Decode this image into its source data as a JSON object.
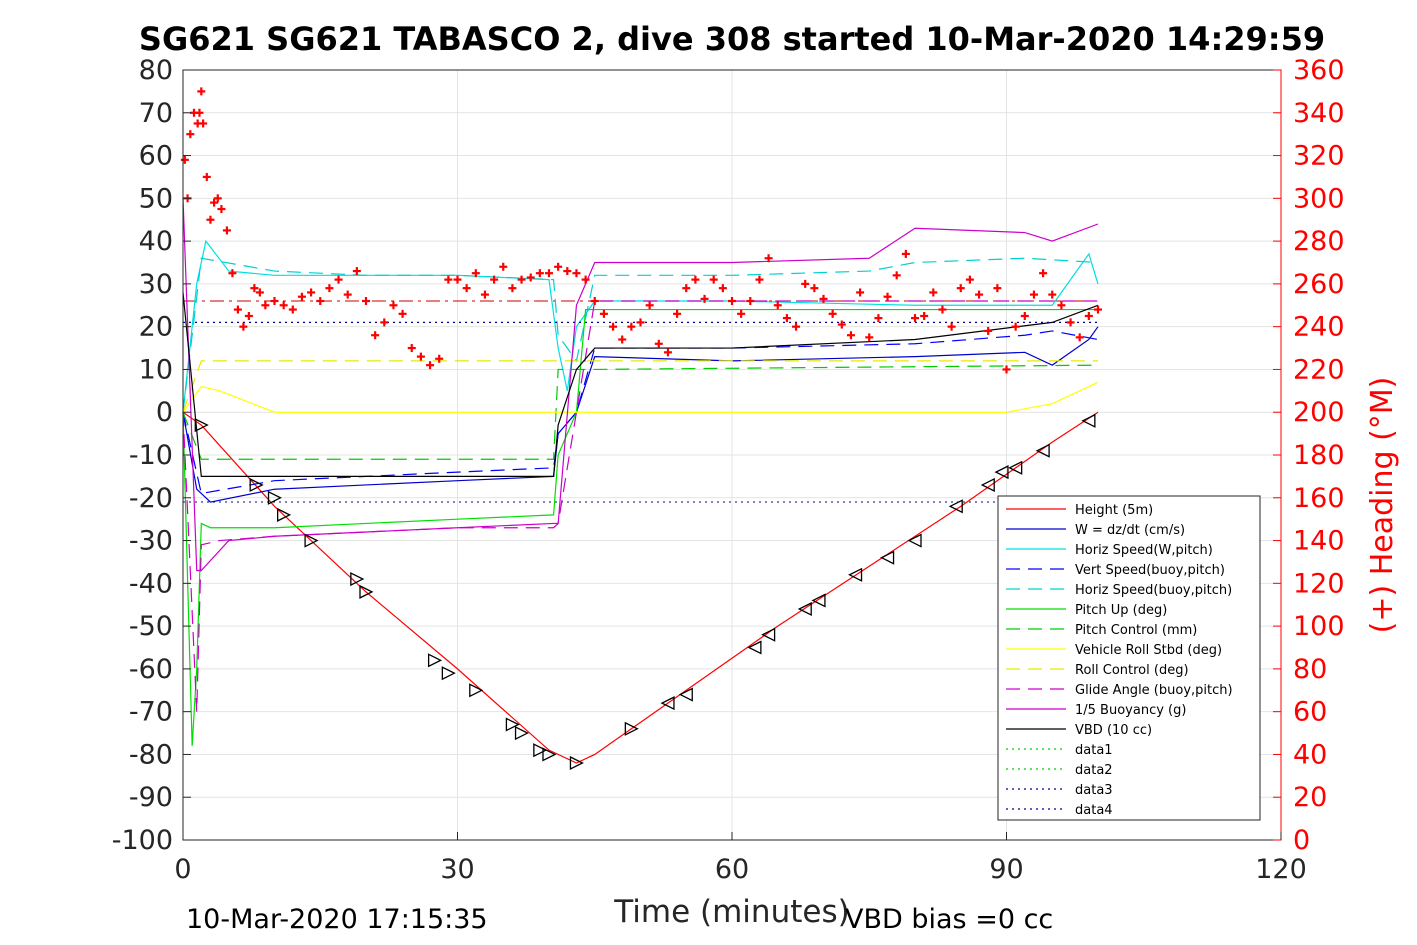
{
  "chart_data": {
    "type": "line",
    "title": "SG621 SG621 TABASCO 2, dive 308 started 10-Mar-2020 14:29:59",
    "xlabel": "Time (minutes)",
    "ylabel_right": "(+) Heading (°M)",
    "xlim": [
      0,
      120
    ],
    "ylim_left": [
      -100,
      80
    ],
    "ylim_right": [
      0,
      360
    ],
    "x_ticks": [
      "0",
      "30",
      "60",
      "90",
      "120"
    ],
    "y_left_ticks": [
      "80",
      "70",
      "60",
      "50",
      "40",
      "30",
      "20",
      "10",
      "0",
      "-10",
      "-20",
      "-30",
      "-40",
      "-50",
      "-60",
      "-70",
      "-80",
      "-90",
      "-100"
    ],
    "y_right_ticks": [
      "360",
      "340",
      "320",
      "300",
      "280",
      "260",
      "240",
      "220",
      "200",
      "180",
      "160",
      "140",
      "120",
      "100",
      "80",
      "60",
      "40",
      "20",
      "0"
    ],
    "grid": true,
    "legend_position": "lower-right",
    "footer_left": "10-Mar-2020 17:15:35",
    "footer_right": "VBD bias =0 cc",
    "series": [
      {
        "name": "Height (5m)",
        "color": "#ff0000",
        "style": "solid",
        "x": [
          0,
          2,
          10,
          20,
          30,
          40,
          43,
          45,
          55,
          65,
          75,
          85,
          95,
          100
        ],
        "y": [
          0,
          -3,
          -22,
          -42,
          -60,
          -79,
          -82,
          -80,
          -65,
          -50,
          -36,
          -22,
          -7,
          0
        ]
      },
      {
        "name": "W = dz/dt (cm/s)",
        "color": "#0000cd",
        "style": "solid",
        "x": [
          0,
          1.5,
          3,
          10,
          20,
          30,
          40.5,
          41,
          43,
          45,
          60,
          80,
          92,
          95,
          99,
          100
        ],
        "y": [
          0,
          -18,
          -21,
          -18,
          -17,
          -16,
          -15,
          -5,
          0,
          13,
          12,
          13,
          14,
          11,
          17,
          20
        ]
      },
      {
        "name": "Horiz Speed(W,pitch)",
        "color": "#00e0e0",
        "style": "solid",
        "x": [
          0,
          1.5,
          2.5,
          5,
          10,
          20,
          30,
          40,
          41,
          42,
          43,
          45,
          60,
          80,
          95,
          99,
          100
        ],
        "y": [
          0,
          30,
          40,
          33,
          32,
          32,
          32,
          31,
          15,
          5,
          20,
          26,
          26,
          25,
          25,
          37,
          30
        ]
      },
      {
        "name": "Vert Speed(buoy,pitch)",
        "color": "#0000ff",
        "style": "dashed",
        "x": [
          0,
          2,
          10,
          20,
          30,
          40.5,
          41,
          43,
          45,
          60,
          80,
          92,
          95,
          100
        ],
        "y": [
          0,
          -19,
          -16,
          -15,
          -14,
          -13,
          -5,
          0,
          15,
          15,
          16,
          18,
          19,
          17
        ]
      },
      {
        "name": "Horiz Speed(buoy,pitch)",
        "color": "#00d0d0",
        "style": "dashed",
        "x": [
          0,
          2,
          10,
          20,
          30,
          40.5,
          41,
          43,
          45,
          60,
          75,
          80,
          92,
          100
        ],
        "y": [
          0,
          36,
          33,
          32,
          32,
          31,
          18,
          12,
          32,
          32,
          33,
          35,
          36,
          35
        ]
      },
      {
        "name": "Pitch Up (deg)",
        "color": "#00e000",
        "style": "solid",
        "x": [
          0,
          1,
          1.5,
          2,
          3,
          10,
          20,
          30,
          40.5,
          41,
          43,
          44,
          60,
          80,
          100
        ],
        "y": [
          0,
          -78,
          -60,
          -26,
          -27,
          -27,
          -26,
          -25,
          -24,
          -10,
          0,
          24,
          24,
          24,
          24
        ]
      },
      {
        "name": "Pitch Control (mm)",
        "color": "#00cc00",
        "style": "dashed",
        "x": [
          0,
          2,
          40.5,
          41,
          45,
          100
        ],
        "y": [
          0,
          -11,
          -11,
          10,
          10,
          11
        ]
      },
      {
        "name": "Vehicle Roll Stbd (deg)",
        "color": "#ffff00",
        "style": "solid",
        "x": [
          0,
          2,
          4,
          10,
          20,
          30,
          40,
          45,
          50,
          60,
          70,
          80,
          90,
          95,
          100
        ],
        "y": [
          0,
          6,
          5,
          0,
          0,
          0,
          0,
          0,
          0,
          0,
          0,
          0,
          0,
          2,
          7
        ]
      },
      {
        "name": "Roll Control (deg)",
        "color": "#e8e800",
        "style": "dashed",
        "x": [
          0,
          2,
          10,
          20,
          30,
          40,
          45,
          60,
          80,
          100
        ],
        "y": [
          0,
          12,
          12,
          12,
          12,
          12,
          12,
          12,
          12,
          12
        ]
      },
      {
        "name": "Glide Angle (buoy,pitch)",
        "color": "#cc00cc",
        "style": "dashed",
        "x": [
          0,
          1.5,
          2,
          4,
          10,
          20,
          30,
          40.5,
          41,
          43,
          45,
          60,
          80,
          100
        ],
        "y": [
          0,
          -70,
          -31,
          -30,
          -29,
          -28,
          -27,
          -27,
          -26,
          0,
          26,
          26,
          26,
          26
        ]
      },
      {
        "name": "1/5 Buoyancy (g)",
        "color": "#cc00cc",
        "style": "solid",
        "x": [
          0,
          1.5,
          2,
          5,
          10,
          20,
          30,
          40.5,
          41,
          43,
          45,
          60,
          75,
          80,
          92,
          95,
          100
        ],
        "y": [
          50,
          -37,
          -37,
          -30,
          -29,
          -28,
          -27,
          -26,
          -26,
          25,
          35,
          35,
          36,
          43,
          42,
          40,
          44
        ]
      },
      {
        "name": "VBD (10 cc)",
        "color": "#000000",
        "style": "solid",
        "x": [
          0,
          2,
          40.5,
          41,
          43,
          45,
          60,
          80,
          95,
          100
        ],
        "y": [
          28,
          -15,
          -15,
          -3,
          10,
          15,
          15,
          17,
          21,
          25
        ]
      },
      {
        "name": "data1",
        "color": "#00cc00",
        "style": "dotted",
        "x": [],
        "y": []
      },
      {
        "name": "data2",
        "color": "#00cc00",
        "style": "dotted",
        "x": [],
        "y": []
      },
      {
        "name": "data3",
        "color": "#00008b",
        "style": "dotted",
        "x": [],
        "y": []
      },
      {
        "name": "data4",
        "color": "#00008b",
        "style": "dotted",
        "x": [
          0,
          100
        ],
        "y": [
          21,
          21
        ]
      }
    ],
    "reference_lines": [
      {
        "color": "#cc0000",
        "style": "dashdot",
        "x": [
          0,
          100
        ],
        "y": [
          26,
          26
        ]
      },
      {
        "color": "#00008b",
        "style": "dotted",
        "x": [
          0,
          100
        ],
        "y": [
          -21,
          -21
        ]
      }
    ],
    "heading": {
      "color": "#ff0000",
      "marker": "+",
      "axis": "right",
      "x": [
        0.2,
        0.5,
        0.8,
        1.2,
        1.6,
        1.8,
        2.0,
        2.2,
        2.6,
        3.0,
        3.4,
        3.8,
        4.2,
        4.8,
        5.4,
        6.0,
        6.6,
        7.2,
        7.8,
        8.4,
        9.0,
        10,
        11,
        12,
        13,
        14,
        15,
        16,
        17,
        18,
        19,
        20,
        21,
        22,
        23,
        24,
        25,
        26,
        27,
        28,
        29,
        30,
        31,
        32,
        33,
        34,
        35,
        36,
        37,
        38,
        39,
        40,
        41,
        42,
        43,
        44,
        45,
        46,
        47,
        48,
        49,
        50,
        51,
        52,
        53,
        54,
        55,
        56,
        57,
        58,
        59,
        60,
        61,
        62,
        63,
        64,
        65,
        66,
        67,
        68,
        69,
        70,
        71,
        72,
        73,
        74,
        75,
        76,
        77,
        78,
        79,
        80,
        81,
        82,
        83,
        84,
        85,
        86,
        87,
        88,
        89,
        90,
        91,
        92,
        93,
        94,
        95,
        96,
        97,
        98,
        99,
        100
      ],
      "y": [
        318,
        300,
        330,
        340,
        335,
        340,
        350,
        335,
        310,
        290,
        298,
        300,
        295,
        285,
        265,
        248,
        240,
        245,
        258,
        256,
        250,
        252,
        250,
        248,
        254,
        256,
        252,
        258,
        262,
        255,
        266,
        252,
        236,
        242,
        250,
        246,
        230,
        226,
        222,
        225,
        262,
        262,
        258,
        265,
        255,
        262,
        268,
        258,
        262,
        263,
        265,
        265,
        268,
        266,
        265,
        262,
        252,
        246,
        240,
        234,
        240,
        242,
        250,
        232,
        228,
        246,
        258,
        262,
        253,
        262,
        258,
        252,
        246,
        252,
        262,
        272,
        250,
        244,
        240,
        260,
        258,
        253,
        246,
        241,
        236,
        256,
        235,
        244,
        254,
        264,
        274,
        244,
        245,
        256,
        248,
        240,
        258,
        262,
        255,
        238,
        258,
        220,
        240,
        245,
        255,
        265,
        255,
        250,
        242,
        235,
        245,
        248
      ]
    },
    "triangle_markers": {
      "x": [
        2,
        8,
        10,
        11,
        14,
        19,
        20,
        27.5,
        29,
        32,
        36,
        37,
        39,
        40,
        43,
        49,
        53,
        55,
        62.5,
        64,
        68,
        69.5,
        73.5,
        77,
        80,
        84.5,
        88,
        89.5,
        91,
        94,
        99
      ],
      "y": [
        -3,
        -17,
        -20,
        -24,
        -30,
        -39,
        -42,
        -58,
        -61,
        -65,
        -73,
        -75,
        -79,
        -80,
        -82,
        -74,
        -68,
        -66,
        -55,
        -52,
        -46,
        -44,
        -38,
        -34,
        -30,
        -22,
        -17,
        -14,
        -13,
        -9,
        -2
      ]
    }
  }
}
